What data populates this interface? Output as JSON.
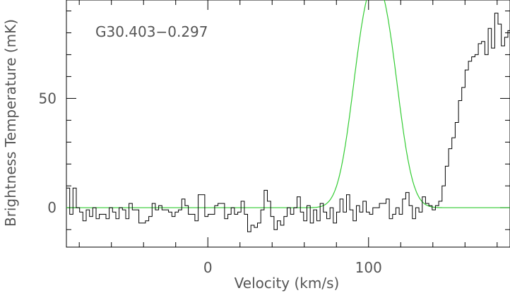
{
  "chart_data": {
    "type": "line",
    "annotation": "G30.403−0.297",
    "xlabel": "Velocity (km/s)",
    "ylabel": "Brightness Temperature (mK)",
    "xlim": [
      -88,
      188
    ],
    "ylim": [
      -18,
      95
    ],
    "x_ticks": [
      0,
      100
    ],
    "y_ticks": [
      0,
      50
    ],
    "grid": false,
    "series": [
      {
        "kind": "histogram",
        "color": "#000000",
        "x_start": -88,
        "step": 2.05,
        "values": [
          9,
          -3,
          9,
          0,
          -2,
          -6,
          -1,
          -4,
          0,
          -5,
          -3,
          -3,
          -5,
          0,
          -2,
          -5,
          0,
          -1,
          -5,
          2,
          -1,
          -1,
          -7,
          -7,
          -6,
          -4,
          2,
          -1,
          1,
          -1,
          -1,
          -2,
          -4,
          -2,
          -1,
          4,
          1,
          -3,
          -3,
          -6,
          6,
          6,
          -4,
          -3,
          -3,
          1,
          2,
          2,
          -5,
          -3,
          0,
          -3,
          -2,
          3,
          -3,
          -11,
          -8,
          -9,
          -7,
          -1,
          8,
          3,
          -4,
          -10,
          -6,
          -8,
          -4,
          0,
          -3,
          0,
          5,
          -2,
          -6,
          1,
          -7,
          -1,
          -6,
          2,
          -2,
          -5,
          0,
          -7,
          -2,
          4,
          -2,
          6,
          -1,
          -6,
          1,
          -2,
          3,
          -2,
          -3,
          0,
          0,
          2,
          2,
          4,
          -5,
          -3,
          0,
          -3,
          4,
          7,
          1,
          -5,
          0,
          -2,
          5,
          2,
          1,
          -1,
          1,
          3,
          10,
          19,
          27,
          32,
          39,
          49,
          55,
          63,
          67,
          69,
          70,
          75,
          76,
          70,
          82,
          73,
          89,
          84,
          74,
          78,
          81,
          80,
          84,
          72,
          78,
          73,
          70,
          68,
          62,
          56,
          53,
          44,
          34,
          28,
          20,
          12,
          5,
          -9,
          -1,
          -3,
          -9,
          -3,
          2,
          -5,
          -10,
          -1,
          -4,
          -4,
          -4,
          -3,
          -5,
          -2,
          -1,
          -1,
          0,
          8,
          2,
          -4,
          -3,
          3,
          -3,
          -3,
          -2,
          5,
          -1,
          -5,
          2,
          -3,
          4,
          -3,
          8,
          0,
          -4,
          7,
          2,
          5
        ]
      },
      {
        "kind": "gaussian-fit",
        "color": "#33cc33",
        "components": [
          {
            "amplitude": 69.5,
            "center": 97.5,
            "sigma": 8.8
          },
          {
            "amplitude": 69.5,
            "center": 111.0,
            "sigma": 8.8
          }
        ]
      }
    ]
  }
}
